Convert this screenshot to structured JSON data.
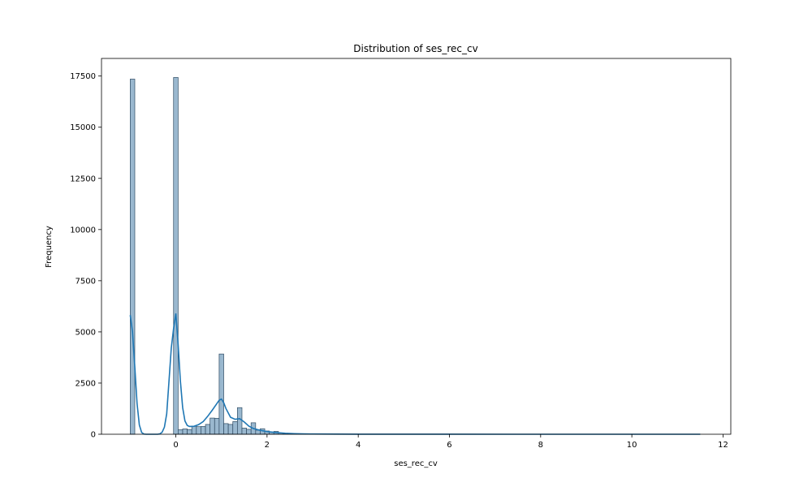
{
  "chart_data": {
    "type": "bar",
    "title": "Distribution of ses_rec_cv",
    "xlabel": "ses_rec_cv",
    "ylabel": "Frequency",
    "xlim": [
      -1.63,
      12.17
    ],
    "ylim": [
      0,
      18360
    ],
    "xticks": [
      0,
      2,
      4,
      6,
      8,
      10,
      12
    ],
    "yticks": [
      0,
      2500,
      5000,
      7500,
      10000,
      12500,
      15000,
      17500
    ],
    "grid": false,
    "legend": "none",
    "colors": {
      "bar_fill": "#9ab8cf",
      "bar_stroke": "#2f4b63",
      "kde": "#1f77b4"
    },
    "bins": [
      {
        "x0": -1.0,
        "x1": -0.9,
        "count": 17350
      },
      {
        "x0": -0.05,
        "x1": 0.05,
        "count": 17430
      },
      {
        "x0": 0.05,
        "x1": 0.15,
        "count": 220
      },
      {
        "x0": 0.15,
        "x1": 0.25,
        "count": 260
      },
      {
        "x0": 0.25,
        "x1": 0.35,
        "count": 230
      },
      {
        "x0": 0.35,
        "x1": 0.45,
        "count": 390
      },
      {
        "x0": 0.45,
        "x1": 0.55,
        "count": 370
      },
      {
        "x0": 0.55,
        "x1": 0.65,
        "count": 380
      },
      {
        "x0": 0.65,
        "x1": 0.75,
        "count": 480
      },
      {
        "x0": 0.75,
        "x1": 0.85,
        "count": 790
      },
      {
        "x0": 0.85,
        "x1": 0.95,
        "count": 780
      },
      {
        "x0": 0.95,
        "x1": 1.05,
        "count": 3920
      },
      {
        "x0": 1.05,
        "x1": 1.15,
        "count": 520
      },
      {
        "x0": 1.15,
        "x1": 1.25,
        "count": 480
      },
      {
        "x0": 1.25,
        "x1": 1.35,
        "count": 620
      },
      {
        "x0": 1.35,
        "x1": 1.45,
        "count": 1300
      },
      {
        "x0": 1.45,
        "x1": 1.55,
        "count": 300
      },
      {
        "x0": 1.55,
        "x1": 1.65,
        "count": 240
      },
      {
        "x0": 1.65,
        "x1": 1.75,
        "count": 560
      },
      {
        "x0": 1.75,
        "x1": 1.85,
        "count": 200
      },
      {
        "x0": 1.85,
        "x1": 1.95,
        "count": 270
      },
      {
        "x0": 1.95,
        "x1": 2.05,
        "count": 160
      },
      {
        "x0": 2.05,
        "x1": 2.15,
        "count": 110
      },
      {
        "x0": 2.15,
        "x1": 2.25,
        "count": 140
      },
      {
        "x0": 2.25,
        "x1": 2.35,
        "count": 60
      },
      {
        "x0": 2.35,
        "x1": 2.45,
        "count": 40
      },
      {
        "x0": 2.45,
        "x1": 2.55,
        "count": 30
      },
      {
        "x0": 2.55,
        "x1": 2.65,
        "count": 20
      },
      {
        "x0": 2.65,
        "x1": 2.75,
        "count": 15
      },
      {
        "x0": 2.75,
        "x1": 2.85,
        "count": 12
      },
      {
        "x0": 2.85,
        "x1": 2.95,
        "count": 10
      },
      {
        "x0": 2.95,
        "x1": 3.05,
        "count": 8
      }
    ],
    "kde": {
      "x": [
        -1.0,
        -0.95,
        -0.9,
        -0.85,
        -0.8,
        -0.75,
        -0.7,
        -0.65,
        -0.6,
        -0.5,
        -0.4,
        -0.35,
        -0.3,
        -0.25,
        -0.2,
        -0.15,
        -0.1,
        -0.05,
        0.0,
        0.05,
        0.1,
        0.15,
        0.2,
        0.25,
        0.3,
        0.4,
        0.5,
        0.6,
        0.7,
        0.8,
        0.9,
        0.95,
        1.0,
        1.05,
        1.1,
        1.2,
        1.3,
        1.4,
        1.5,
        1.6,
        1.7,
        1.8,
        1.9,
        2.0,
        2.2,
        2.4,
        2.6,
        2.8,
        3.0,
        3.5,
        4.0,
        5.0,
        6.0,
        8.0,
        10.0,
        11.5
      ],
      "y": [
        5820,
        5000,
        3300,
        1500,
        450,
        90,
        10,
        0,
        0,
        0,
        0,
        20,
        100,
        350,
        1000,
        2600,
        4200,
        5150,
        5900,
        4400,
        2600,
        1300,
        650,
        430,
        380,
        390,
        470,
        620,
        880,
        1180,
        1500,
        1660,
        1720,
        1540,
        1250,
        830,
        730,
        760,
        600,
        400,
        280,
        220,
        170,
        130,
        80,
        50,
        30,
        18,
        12,
        6,
        4,
        2,
        1,
        0,
        0,
        0
      ]
    }
  }
}
